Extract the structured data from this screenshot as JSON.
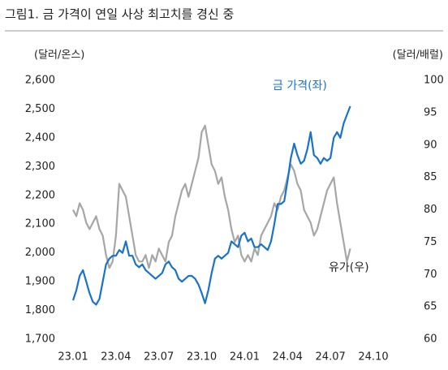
{
  "chart_data": {
    "type": "line",
    "title": "그림1.  금 가격이 연일 사상 최고치를 경신 중",
    "y_label": "(달러/온스)",
    "y2_label": "(달러/배럴)",
    "categories": [
      "23.01",
      null,
      null,
      null,
      null,
      null,
      null,
      null,
      null,
      null,
      null,
      null,
      null,
      "23.04",
      null,
      null,
      null,
      null,
      null,
      null,
      null,
      null,
      null,
      null,
      null,
      null,
      "23.07",
      null,
      null,
      null,
      null,
      null,
      null,
      null,
      null,
      null,
      null,
      null,
      null,
      "23.10",
      null,
      null,
      null,
      null,
      null,
      null,
      null,
      null,
      null,
      null,
      null,
      null,
      "24.01",
      null,
      null,
      null,
      null,
      null,
      null,
      null,
      null,
      null,
      null,
      null,
      null,
      "24.04",
      null,
      null,
      null,
      null,
      null,
      null,
      null,
      null,
      null,
      null,
      null,
      null,
      "24.07",
      null,
      null,
      null,
      null,
      null,
      null,
      null,
      null,
      null,
      null,
      null,
      null,
      "24.10"
    ],
    "series": [
      {
        "name": "금 가격(좌)",
        "color": "#1a73c8",
        "axis": "y",
        "values": [
          1835,
          1870,
          1920,
          1940,
          1900,
          1860,
          1830,
          1820,
          1840,
          1900,
          1960,
          1980,
          1990,
          1990,
          2010,
          2000,
          2040,
          1990,
          1990,
          1960,
          1950,
          1960,
          1940,
          1930,
          1920,
          1910,
          1920,
          1930,
          1960,
          1970,
          1950,
          1940,
          1910,
          1900,
          1910,
          1920,
          1920,
          1910,
          1890,
          1860,
          1825,
          1870,
          1930,
          1980,
          1990,
          1980,
          1990,
          2000,
          2040,
          2030,
          2020,
          2060,
          2070,
          2040,
          2050,
          2020,
          2020,
          2030,
          2020,
          2010,
          2040,
          2100,
          2170,
          2170,
          2180,
          2250,
          2330,
          2380,
          2340,
          2310,
          2320,
          2360,
          2420,
          2340,
          2330,
          2310,
          2330,
          2320,
          2330,
          2400,
          2420,
          2400,
          2450,
          2480,
          2510,
          null,
          null,
          null,
          null,
          null,
          null,
          null
        ]
      },
      {
        "name": "유가(우)",
        "color": "#a6a6a6",
        "axis": "y2",
        "values": [
          80,
          79,
          81,
          80,
          78,
          77,
          78,
          79,
          77,
          76,
          73,
          71,
          72,
          76,
          84,
          83,
          82,
          79,
          76,
          73,
          72,
          72,
          73,
          71,
          73,
          72,
          74,
          73,
          72,
          75,
          76,
          79,
          81,
          83,
          84,
          82,
          84,
          86,
          88,
          92,
          93,
          90,
          87,
          86,
          84,
          85,
          82,
          80,
          77,
          75,
          76,
          73,
          72,
          73,
          72,
          74,
          73,
          76,
          77,
          78,
          79,
          81,
          80,
          82,
          83,
          85,
          87,
          86,
          84,
          83,
          80,
          79,
          78,
          76,
          77,
          79,
          81,
          83,
          84,
          85,
          81,
          78,
          75,
          72,
          74,
          null,
          null,
          null,
          null,
          null,
          null,
          null
        ]
      }
    ],
    "ylim": [
      1700,
      2600
    ],
    "yticks": [
      {
        "value": 1700,
        "label": "1,700"
      },
      {
        "value": 1800,
        "label": "1,800"
      },
      {
        "value": 1900,
        "label": "1,900"
      },
      {
        "value": 2000,
        "label": "2,000"
      },
      {
        "value": 2100,
        "label": "2,100"
      },
      {
        "value": 2200,
        "label": "2,200"
      },
      {
        "value": 2300,
        "label": "2,300"
      },
      {
        "value": 2400,
        "label": "2,400"
      },
      {
        "value": 2500,
        "label": "2,500"
      },
      {
        "value": 2600,
        "label": "2,600"
      }
    ],
    "y2lim": [
      60,
      100
    ],
    "y2ticks": [
      60,
      65,
      70,
      75,
      80,
      85,
      90,
      95,
      100
    ],
    "grid": false
  }
}
